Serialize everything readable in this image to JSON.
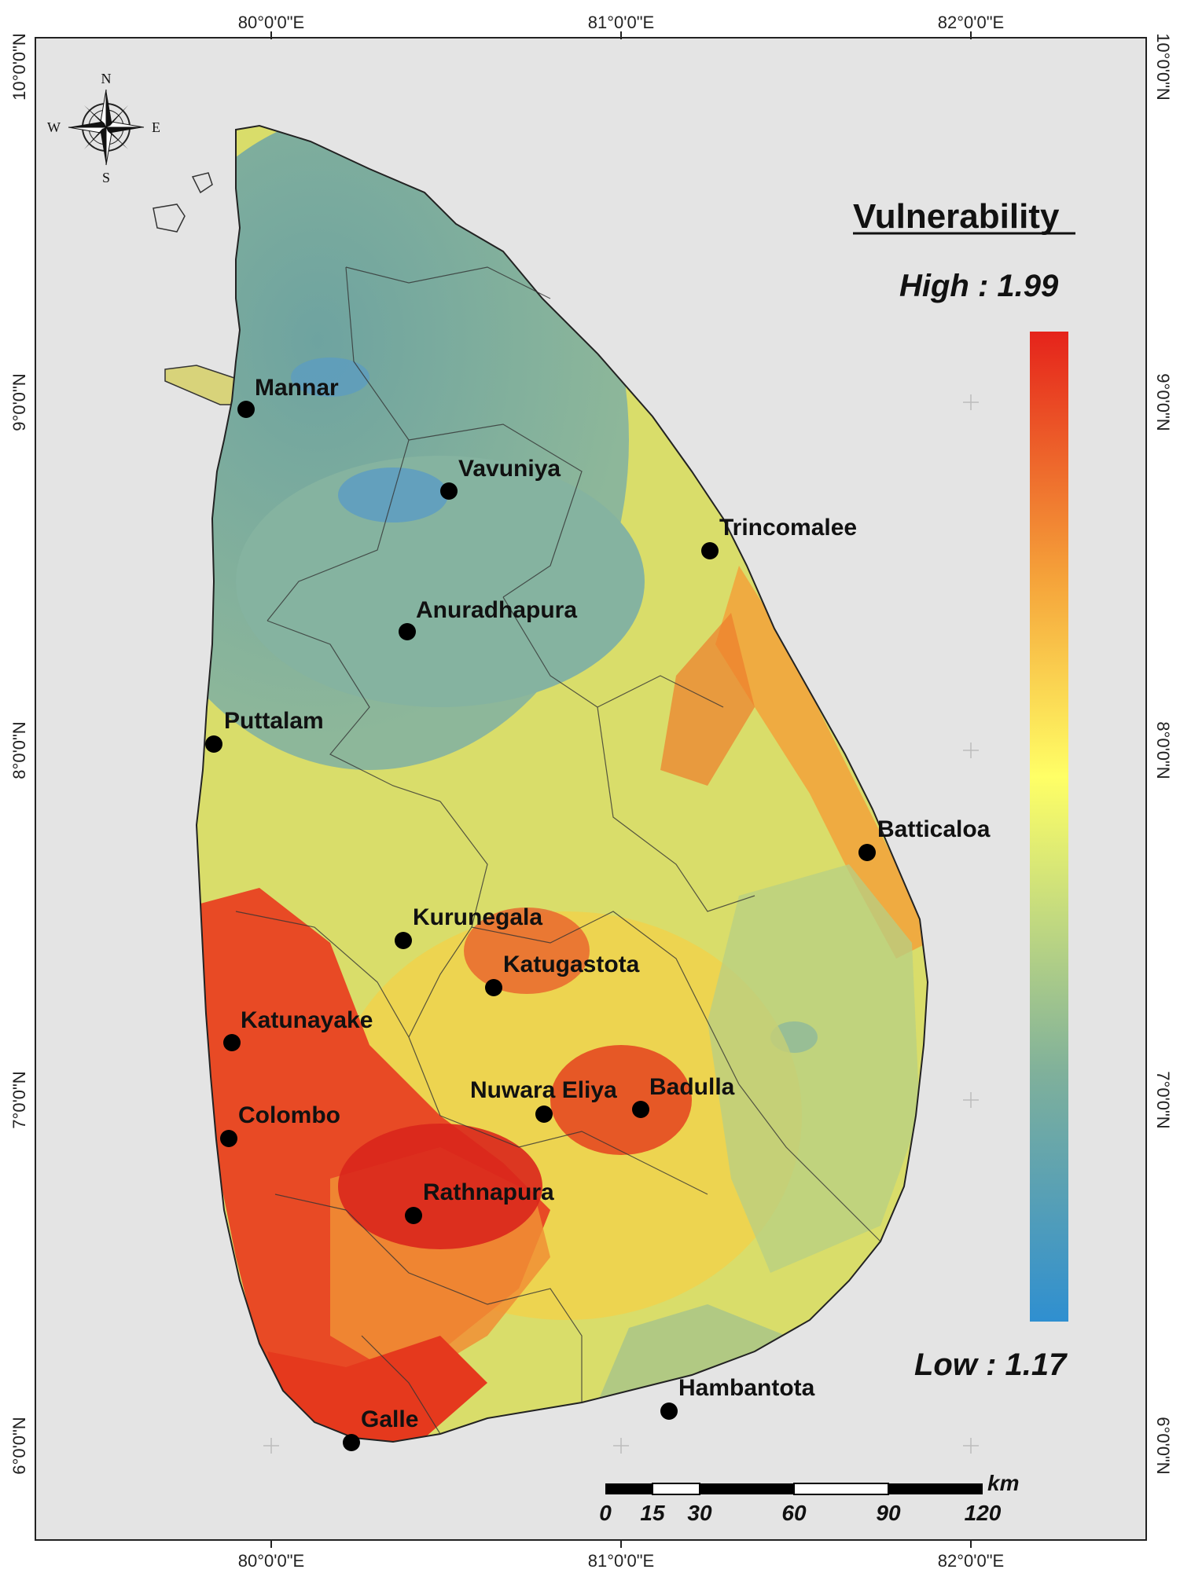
{
  "map": {
    "top_ticks": [
      "80°0'0\"E",
      "81°0'0\"E",
      "82°0'0\"E"
    ],
    "bottom_ticks": [
      "80°0'0\"E",
      "81°0'0\"E",
      "82°0'0\"E"
    ],
    "left_ticks": [
      "10°0'0\"N",
      "9°0'0\"N",
      "8°0'0\"N",
      "7°0'0\"N",
      "6°0'0\"N"
    ],
    "right_ticks": [
      "10°0'0\"N",
      "9°0'0\"N",
      "8°0'0\"N",
      "7°0'0\"N",
      "6°0'0\"N"
    ],
    "colors": {
      "background": "#e4e4e4",
      "low": "#2f8fd0",
      "mid_low": "#7fb09b",
      "mid": "#ffff66",
      "mid_high": "#f5a33a",
      "high": "#e5231b"
    }
  },
  "compass": {
    "n": "N",
    "s": "S",
    "e": "E",
    "w": "W"
  },
  "legend": {
    "title": "Vulnerability",
    "high": "High : 1.99",
    "low": "Low : 1.17"
  },
  "cities": [
    {
      "name": "Mannar"
    },
    {
      "name": "Vavuniya"
    },
    {
      "name": "Trincomalee"
    },
    {
      "name": "Anuradhapura"
    },
    {
      "name": "Puttalam"
    },
    {
      "name": "Batticaloa"
    },
    {
      "name": "Kurunegala"
    },
    {
      "name": "Katugastota"
    },
    {
      "name": "Katunayake"
    },
    {
      "name": "Nuwara Eliya"
    },
    {
      "name": "Badulla"
    },
    {
      "name": "Colombo"
    },
    {
      "name": "Rathnapura"
    },
    {
      "name": "Hambantota"
    },
    {
      "name": "Galle"
    }
  ],
  "scalebar": {
    "unit": "km",
    "labels": [
      "0",
      "15",
      "30",
      "60",
      "90",
      "120"
    ]
  }
}
